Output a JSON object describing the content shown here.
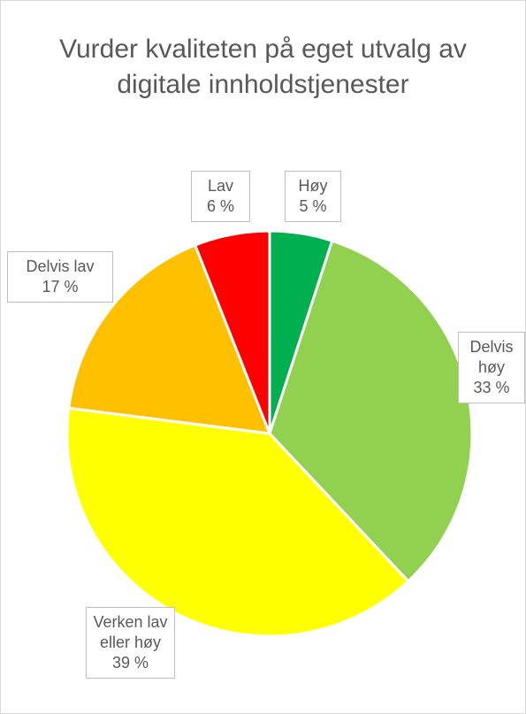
{
  "chart_data": {
    "type": "pie",
    "title": "Vurder kvaliteten på eget utvalg av digitale innholdstjenester",
    "categories": [
      "Høy",
      "Delvis høy",
      "Verken lav eller høy",
      "Delvis lav",
      "Lav"
    ],
    "values": [
      5,
      33,
      39,
      17,
      6
    ],
    "value_labels": [
      "5 %",
      "33 %",
      "39 %",
      "17 %",
      "6 %"
    ],
    "colors": [
      "#00b050",
      "#92d050",
      "#ffff00",
      "#ffc000",
      "#ff0000"
    ]
  }
}
